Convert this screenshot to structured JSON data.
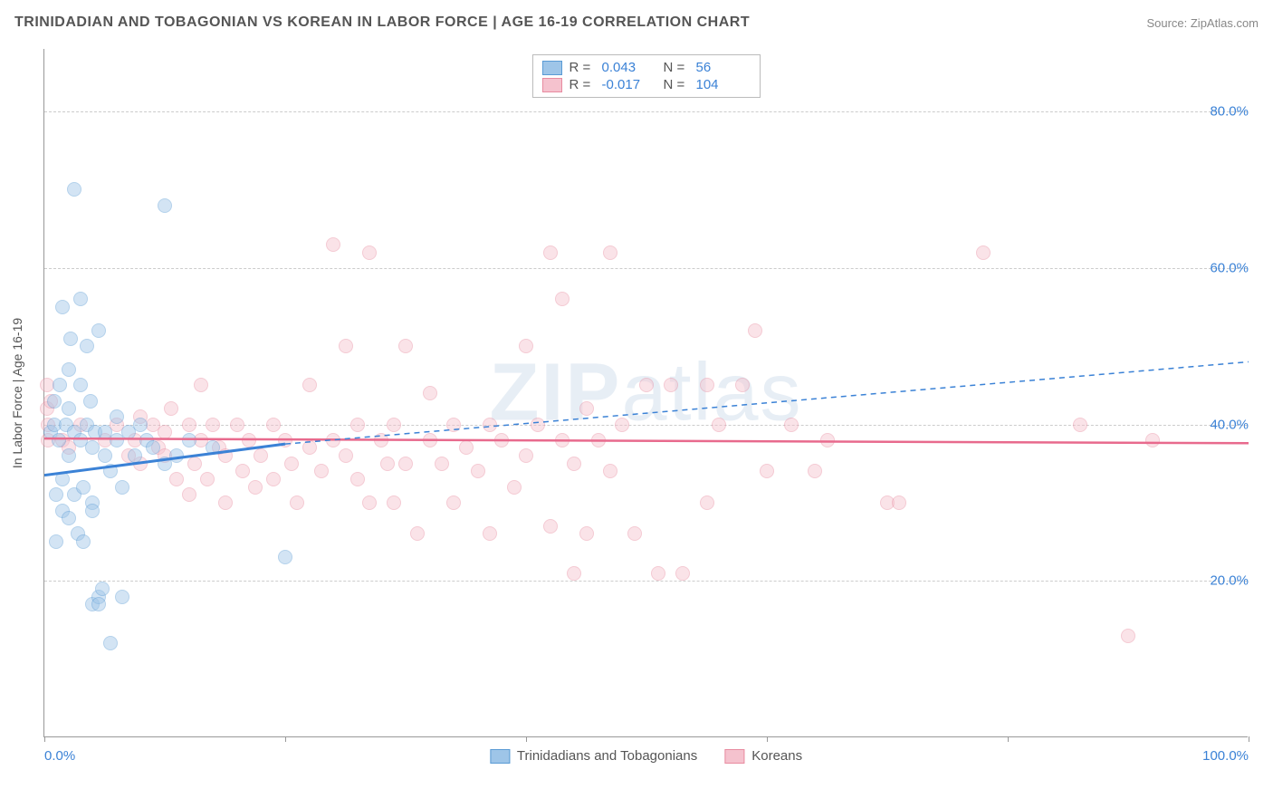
{
  "title": "TRINIDADIAN AND TOBAGONIAN VS KOREAN IN LABOR FORCE | AGE 16-19 CORRELATION CHART",
  "source": "Source: ZipAtlas.com",
  "watermark": {
    "bold": "ZIP",
    "rest": "atlas"
  },
  "chart": {
    "type": "scatter",
    "xlim": [
      0,
      100
    ],
    "ylim": [
      0,
      88
    ],
    "x_ticks": [
      0,
      20,
      40,
      60,
      80,
      100
    ],
    "x_tick_labels": {
      "0": "0.0%",
      "100": "100.0%"
    },
    "y_ticks": [
      20,
      40,
      60,
      80
    ],
    "y_tick_labels": {
      "20": "20.0%",
      "40": "40.0%",
      "60": "60.0%",
      "80": "80.0%"
    },
    "y_axis_label": "In Labor Force | Age 16-19",
    "background": "#ffffff",
    "grid_color": "#cccccc",
    "axis_color": "#999999",
    "tick_label_color": "#3b82d6",
    "marker_radius": 8,
    "marker_opacity": 0.45,
    "series": [
      {
        "name": "Trinidadians and Tobagonians",
        "key": "tt",
        "fill": "#9ec5e8",
        "stroke": "#5a9bd5",
        "R": "0.043",
        "N": "56",
        "trend": {
          "x1": 0,
          "y1": 33.5,
          "x2": 20,
          "y2": 37.5,
          "dash_x2": 100,
          "dash_y2": 48.0,
          "color": "#3b82d6",
          "width": 3
        },
        "points": [
          [
            0.5,
            39
          ],
          [
            0.8,
            43
          ],
          [
            0.8,
            40
          ],
          [
            1.0,
            31
          ],
          [
            1.0,
            25
          ],
          [
            1.2,
            38
          ],
          [
            1.3,
            45
          ],
          [
            1.5,
            55
          ],
          [
            1.5,
            33
          ],
          [
            1.5,
            29
          ],
          [
            1.8,
            40
          ],
          [
            2.0,
            47
          ],
          [
            2.0,
            42
          ],
          [
            2.0,
            36
          ],
          [
            2.0,
            28
          ],
          [
            2.2,
            51
          ],
          [
            2.5,
            70
          ],
          [
            2.5,
            39
          ],
          [
            2.5,
            31
          ],
          [
            2.8,
            26
          ],
          [
            3.0,
            56
          ],
          [
            3.0,
            45
          ],
          [
            3.0,
            38
          ],
          [
            3.2,
            32
          ],
          [
            3.2,
            25
          ],
          [
            3.5,
            50
          ],
          [
            3.5,
            40
          ],
          [
            3.8,
            43
          ],
          [
            4.0,
            37
          ],
          [
            4.0,
            30
          ],
          [
            4.0,
            29
          ],
          [
            4.0,
            17
          ],
          [
            4.2,
            39
          ],
          [
            4.5,
            52
          ],
          [
            4.5,
            18
          ],
          [
            4.5,
            17
          ],
          [
            4.8,
            19
          ],
          [
            5.0,
            36
          ],
          [
            5.0,
            39
          ],
          [
            5.5,
            34
          ],
          [
            5.5,
            12
          ],
          [
            6.0,
            41
          ],
          [
            6.0,
            38
          ],
          [
            6.5,
            32
          ],
          [
            6.5,
            18
          ],
          [
            7.0,
            39
          ],
          [
            7.5,
            36
          ],
          [
            8.0,
            40
          ],
          [
            8.5,
            38
          ],
          [
            9.0,
            37
          ],
          [
            10.0,
            35
          ],
          [
            10.0,
            68
          ],
          [
            11.0,
            36
          ],
          [
            12.0,
            38
          ],
          [
            14.0,
            37
          ],
          [
            20.0,
            23
          ]
        ]
      },
      {
        "name": "Koreans",
        "key": "ko",
        "fill": "#f5c2ce",
        "stroke": "#e88ba0",
        "R": "-0.017",
        "N": "104",
        "trend": {
          "x1": 0,
          "y1": 38.2,
          "x2": 100,
          "y2": 37.6,
          "color": "#e86a8d",
          "width": 2.5
        },
        "points": [
          [
            0.2,
            45
          ],
          [
            0.2,
            42
          ],
          [
            0.3,
            40
          ],
          [
            0.3,
            38
          ],
          [
            0.5,
            43
          ],
          [
            1.5,
            38
          ],
          [
            2.0,
            37
          ],
          [
            3.0,
            40
          ],
          [
            5.0,
            38
          ],
          [
            6.0,
            40
          ],
          [
            7.0,
            36
          ],
          [
            7.5,
            38
          ],
          [
            8.0,
            41
          ],
          [
            8.0,
            35
          ],
          [
            9.0,
            40
          ],
          [
            9.5,
            37
          ],
          [
            10.0,
            39
          ],
          [
            10.0,
            36
          ],
          [
            10.5,
            42
          ],
          [
            11.0,
            33
          ],
          [
            12.0,
            40
          ],
          [
            12.0,
            31
          ],
          [
            12.5,
            35
          ],
          [
            13.0,
            45
          ],
          [
            13.0,
            38
          ],
          [
            13.5,
            33
          ],
          [
            14.0,
            40
          ],
          [
            14.5,
            37
          ],
          [
            15.0,
            36
          ],
          [
            15.0,
            30
          ],
          [
            16.0,
            40
          ],
          [
            16.5,
            34
          ],
          [
            17.0,
            38
          ],
          [
            17.5,
            32
          ],
          [
            18.0,
            36
          ],
          [
            19.0,
            40
          ],
          [
            19.0,
            33
          ],
          [
            20.0,
            38
          ],
          [
            20.5,
            35
          ],
          [
            21.0,
            30
          ],
          [
            22.0,
            45
          ],
          [
            22.0,
            37
          ],
          [
            23.0,
            34
          ],
          [
            24.0,
            38
          ],
          [
            24.0,
            63
          ],
          [
            25.0,
            36
          ],
          [
            25.0,
            50
          ],
          [
            26.0,
            33
          ],
          [
            26.0,
            40
          ],
          [
            27.0,
            30
          ],
          [
            27.0,
            62
          ],
          [
            28.0,
            38
          ],
          [
            28.5,
            35
          ],
          [
            29.0,
            30
          ],
          [
            29.0,
            40
          ],
          [
            30.0,
            50
          ],
          [
            30.0,
            35
          ],
          [
            31.0,
            26
          ],
          [
            32.0,
            38
          ],
          [
            32.0,
            44
          ],
          [
            33.0,
            35
          ],
          [
            34.0,
            40
          ],
          [
            34.0,
            30
          ],
          [
            35.0,
            37
          ],
          [
            36.0,
            34
          ],
          [
            37.0,
            26
          ],
          [
            37.0,
            40
          ],
          [
            38.0,
            38
          ],
          [
            39.0,
            32
          ],
          [
            40.0,
            50
          ],
          [
            40.0,
            36
          ],
          [
            41.0,
            40
          ],
          [
            42.0,
            27
          ],
          [
            42.0,
            62
          ],
          [
            43.0,
            38
          ],
          [
            43.0,
            56
          ],
          [
            44.0,
            35
          ],
          [
            44.0,
            21
          ],
          [
            45.0,
            42
          ],
          [
            45.0,
            26
          ],
          [
            46.0,
            38
          ],
          [
            47.0,
            34
          ],
          [
            47.0,
            62
          ],
          [
            48.0,
            40
          ],
          [
            49.0,
            26
          ],
          [
            50.0,
            45
          ],
          [
            51.0,
            21
          ],
          [
            52.0,
            45
          ],
          [
            53.0,
            21
          ],
          [
            55.0,
            30
          ],
          [
            55.0,
            45
          ],
          [
            56.0,
            40
          ],
          [
            58.0,
            45
          ],
          [
            59.0,
            52
          ],
          [
            60.0,
            34
          ],
          [
            62.0,
            40
          ],
          [
            64.0,
            34
          ],
          [
            65.0,
            38
          ],
          [
            70.0,
            30
          ],
          [
            71.0,
            30
          ],
          [
            78.0,
            62
          ],
          [
            86.0,
            40
          ],
          [
            90.0,
            13
          ],
          [
            92.0,
            38
          ]
        ]
      }
    ]
  }
}
